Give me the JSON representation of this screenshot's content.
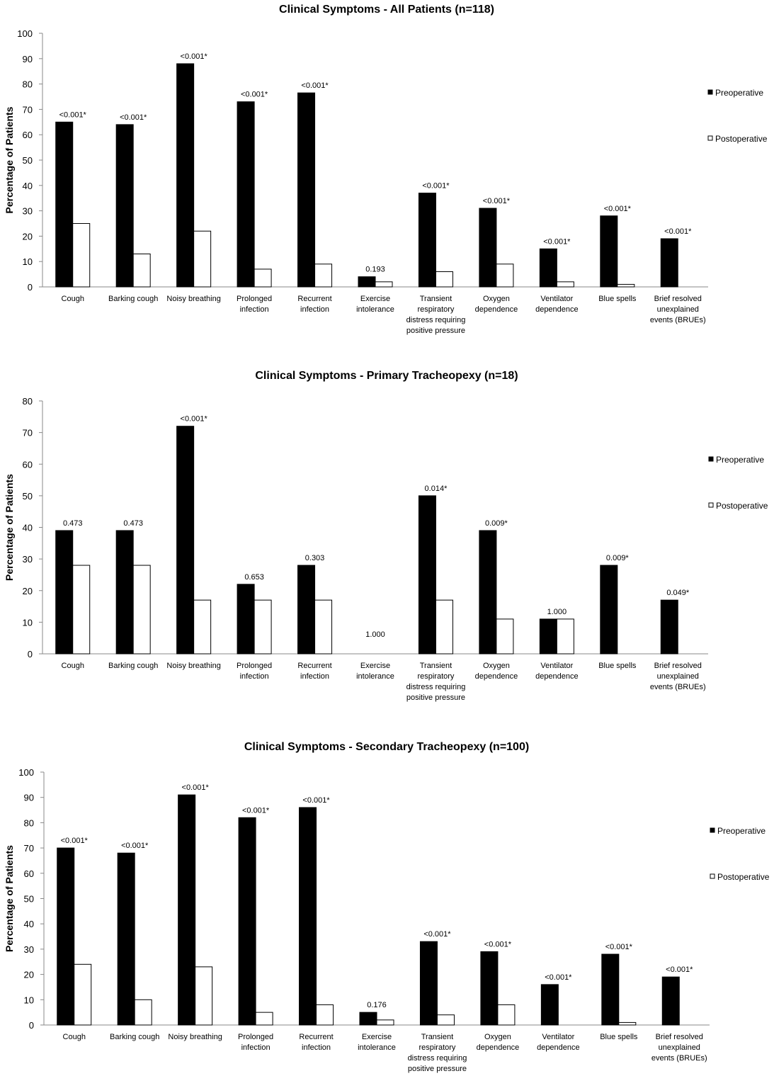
{
  "chart_data": [
    {
      "type": "bar",
      "title": "Clinical Symptoms - All Patients (n=118)",
      "ylabel": "Percentage of Patients",
      "xlabel": "",
      "ylim": [
        0,
        100
      ],
      "ytick_step": 10,
      "grid": false,
      "legend_placement": "right",
      "categories": [
        "Cough",
        "Barking cough",
        "Noisy breathing",
        "Prolonged infection",
        "Recurrent infection",
        "Exercise intolerance",
        "Transient respiratory distress requiring positive pressure",
        "Oxygen dependence",
        "Ventilator dependence",
        "Blue spells",
        "Brief resolved unexplained events (BRUEs)"
      ],
      "series": [
        {
          "name": "Preoperative",
          "color": "#000000",
          "values": [
            65,
            64,
            88,
            73,
            76.5,
            4,
            37,
            31,
            15,
            28,
            19
          ]
        },
        {
          "name": "Postoperative",
          "color": "#ffffff",
          "values": [
            25,
            13,
            22,
            7,
            9,
            2,
            6,
            9,
            2,
            1,
            0
          ]
        }
      ],
      "annotations": [
        "<0.001*",
        "<0.001*",
        "<0.001*",
        "<0.001*",
        "<0.001*",
        "0.193",
        "<0.001*",
        "<0.001*",
        "<0.001*",
        "<0.001*",
        "<0.001*"
      ]
    },
    {
      "type": "bar",
      "title": "Clinical Symptoms - Primary Tracheopexy (n=18)",
      "ylabel": "Percentage of Patients",
      "xlabel": "",
      "ylim": [
        0,
        80
      ],
      "ytick_step": 10,
      "grid": false,
      "legend_placement": "right",
      "categories": [
        "Cough",
        "Barking cough",
        "Noisy breathing",
        "Prolonged infection",
        "Recurrent infection",
        "Exercise intolerance",
        "Transient respiratory distress requiring positive pressure",
        "Oxygen dependence",
        "Ventilator dependence",
        "Blue spells",
        "Brief resolved unexplained events (BRUEs)"
      ],
      "series": [
        {
          "name": "Preoperative",
          "color": "#000000",
          "values": [
            39,
            39,
            72,
            22,
            28,
            0,
            50,
            39,
            11,
            28,
            17
          ]
        },
        {
          "name": "Postoperative",
          "color": "#ffffff",
          "values": [
            28,
            28,
            17,
            17,
            17,
            0,
            17,
            11,
            11,
            0,
            0
          ]
        }
      ],
      "annotations": [
        "0.473",
        "0.473",
        "<0.001*",
        "0.653",
        "0.303",
        "1.000",
        "0.014*",
        "0.009*",
        "1.000",
        "0.009*",
        "0.049*"
      ]
    },
    {
      "type": "bar",
      "title": "Clinical Symptoms - Secondary Tracheopexy (n=100)",
      "ylabel": "Percentage of Patients",
      "xlabel": "",
      "ylim": [
        0,
        100
      ],
      "ytick_step": 10,
      "grid": false,
      "legend_placement": "right",
      "categories": [
        "Cough",
        "Barking cough",
        "Noisy breathing",
        "Prolonged infection",
        "Recurrent infection",
        "Exercise intolerance",
        "Transient respiratory distress requiring positive pressure",
        "Oxygen dependence",
        "Ventilator dependence",
        "Blue spells",
        "Brief resolved unexplained events (BRUEs)"
      ],
      "series": [
        {
          "name": "Preoperative",
          "color": "#000000",
          "values": [
            70,
            68,
            91,
            82,
            86,
            5,
            33,
            29,
            16,
            28,
            19
          ]
        },
        {
          "name": "Postoperative",
          "color": "#ffffff",
          "values": [
            24,
            10,
            23,
            5,
            8,
            2,
            4,
            8,
            0,
            1,
            0
          ]
        }
      ],
      "annotations": [
        "<0.001*",
        "<0.001*",
        "<0.001*",
        "<0.001*",
        "<0.001*",
        "0.176",
        "<0.001*",
        "<0.001*",
        "<0.001*",
        "<0.001*",
        "<0.001*"
      ]
    }
  ]
}
